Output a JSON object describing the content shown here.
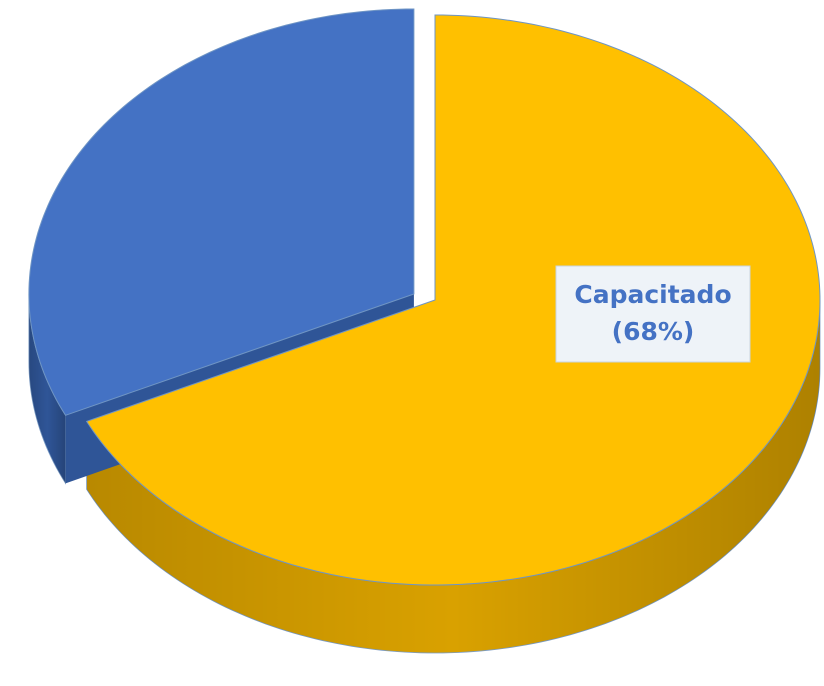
{
  "chart_data": {
    "type": "pie",
    "categories": [
      "Capacitado",
      null
    ],
    "values": [
      68,
      32
    ],
    "value_labels": [
      "(68%)",
      null
    ],
    "colors": [
      "#ffc000",
      "#4472c4"
    ],
    "side_colors": [
      "#d9a100",
      "#2f5597"
    ],
    "exploded": [
      false,
      true
    ]
  }
}
